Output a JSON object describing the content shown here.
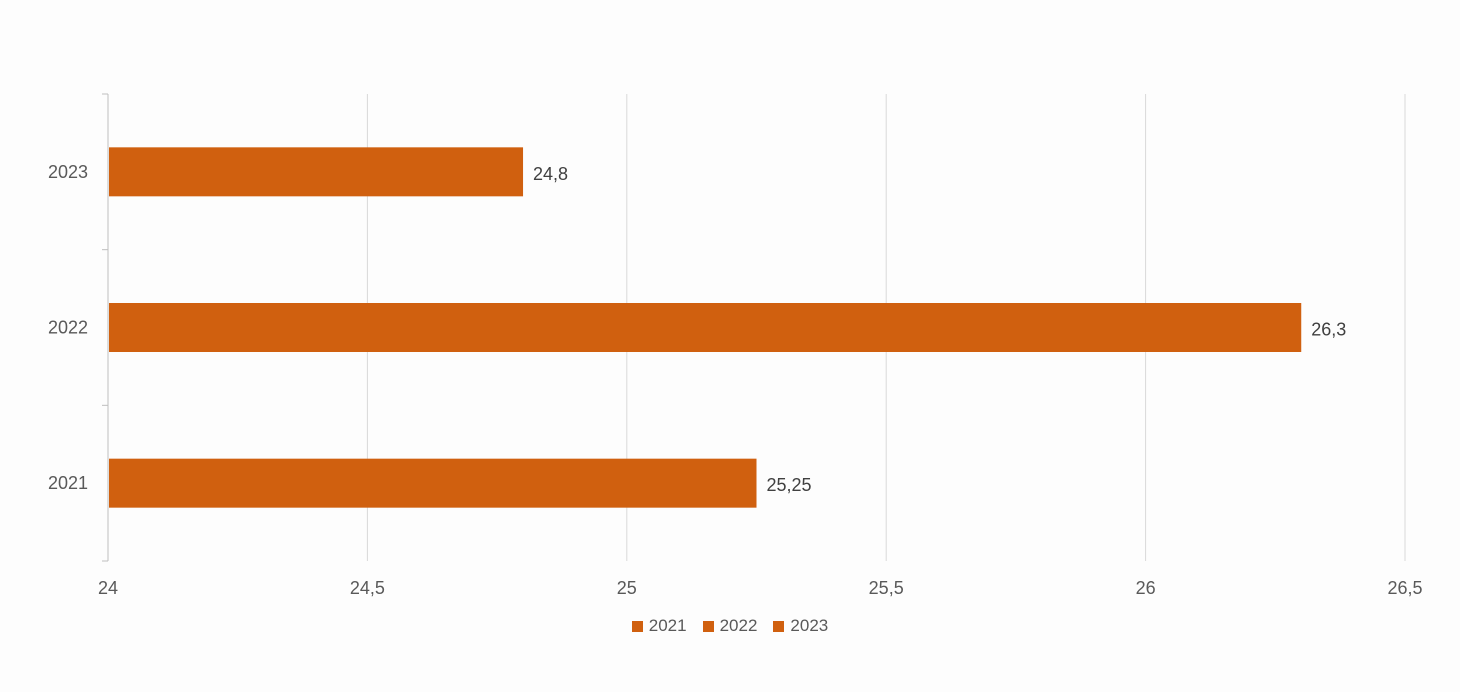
{
  "chart_data": {
    "type": "bar",
    "orientation": "horizontal",
    "categories": [
      "2021",
      "2022",
      "2023"
    ],
    "values": [
      25.25,
      26.3,
      24.8
    ],
    "data_labels": [
      "25,25",
      "26,3",
      "24,8"
    ],
    "xlim": [
      24,
      26.5
    ],
    "x_ticks": [
      24,
      24.5,
      25,
      25.5,
      26,
      26.5
    ],
    "x_tick_labels": [
      "24",
      "24,5",
      "25",
      "25,5",
      "26",
      "26,5"
    ],
    "grid": true,
    "legend": {
      "placement": "bottom",
      "entries": [
        "2021",
        "2022",
        "2023"
      ]
    },
    "colors": {
      "bar": "#D0600F",
      "grid": "#d9d9d9",
      "axis": "#bfbfbf"
    }
  }
}
